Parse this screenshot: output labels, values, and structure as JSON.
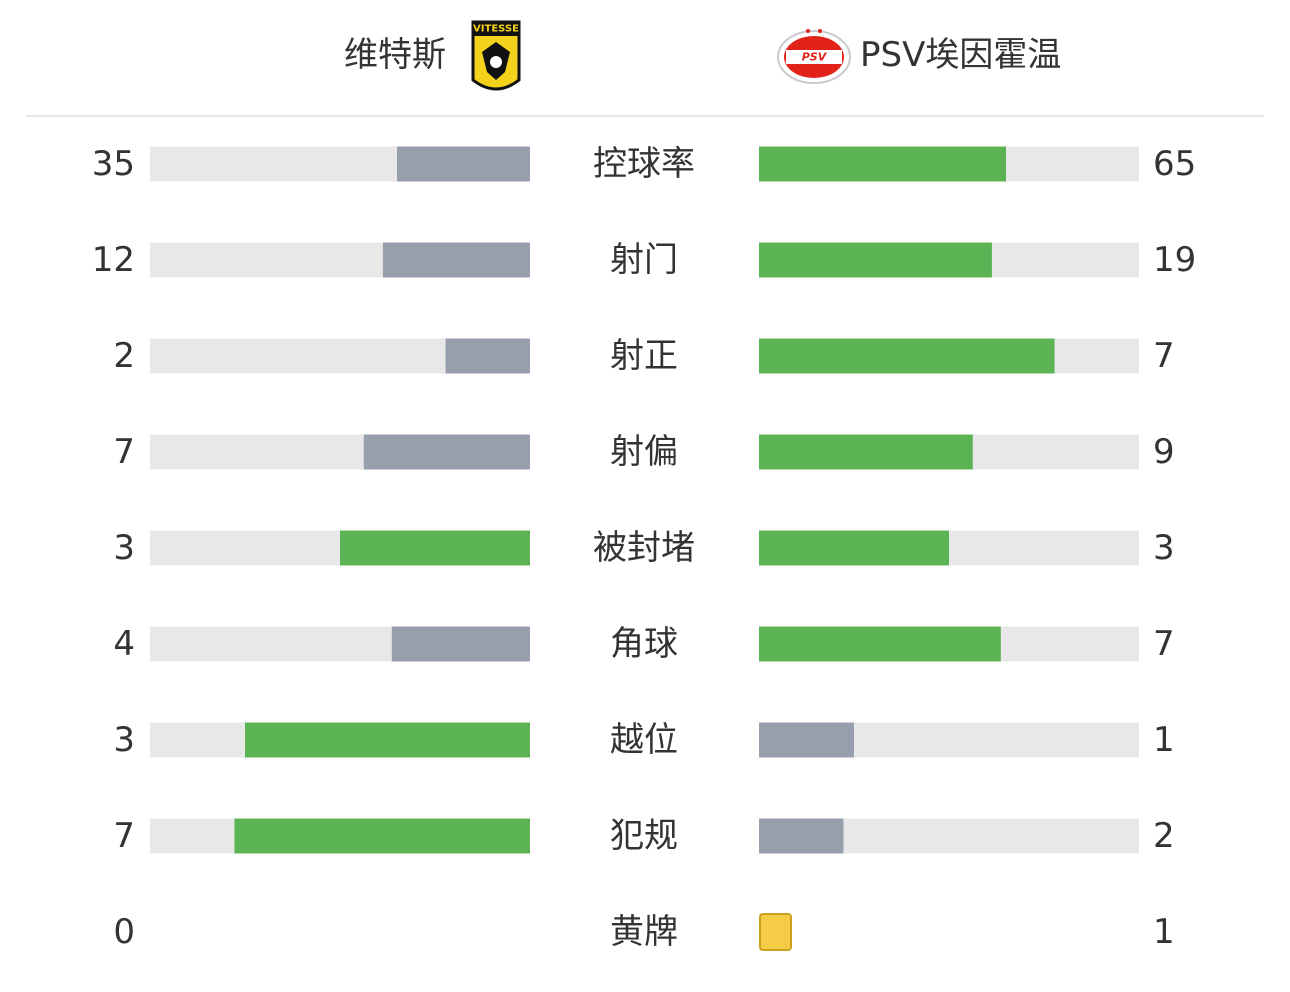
{
  "header": {
    "home": {
      "name": "维特斯",
      "logo_text": "VITESSE"
    },
    "away": {
      "name": "PSV埃因霍温",
      "logo_text": "PSV"
    }
  },
  "stats": [
    {
      "label": "控球率",
      "home": 35,
      "away": 65
    },
    {
      "label": "射门",
      "home": 12,
      "away": 19
    },
    {
      "label": "射正",
      "home": 2,
      "away": 7
    },
    {
      "label": "射偏",
      "home": 7,
      "away": 9
    },
    {
      "label": "被封堵",
      "home": 3,
      "away": 3
    },
    {
      "label": "角球",
      "home": 4,
      "away": 7
    },
    {
      "label": "越位",
      "home": 3,
      "away": 1
    },
    {
      "label": "犯规",
      "home": 7,
      "away": 2
    }
  ],
  "yellow_cards": {
    "label": "黄牌",
    "home": 0,
    "away": 1
  },
  "colors": {
    "leading": "#5cb353",
    "trailing": "#979eae",
    "track": "#e8e8e8",
    "card": "#f6cb45"
  }
}
